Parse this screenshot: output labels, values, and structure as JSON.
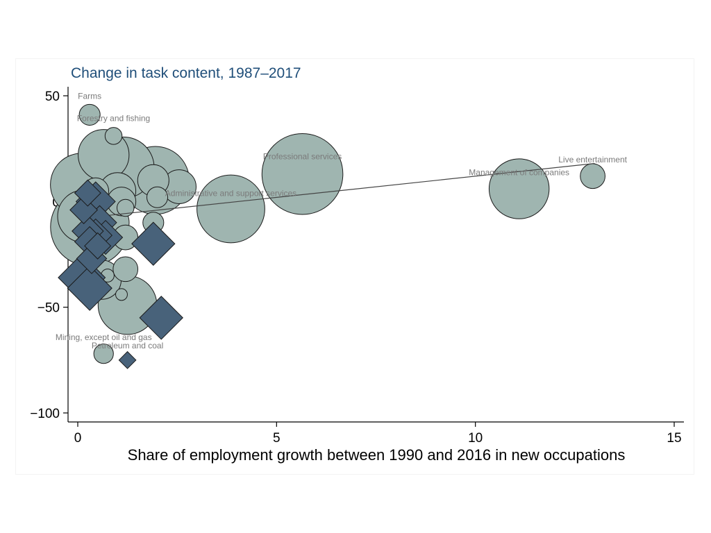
{
  "chart_data": {
    "type": "scatter",
    "title": "Change in task content, 1987–2017",
    "xlabel": "Share of employment growth between 1990 and 2016 in new occupations",
    "ylabel": "",
    "xlim": [
      -0.25,
      15.25
    ],
    "ylim": [
      -103,
      55
    ],
    "xticks": [
      "0",
      "5",
      "10",
      "15"
    ],
    "yticks": [
      "50",
      "0",
      "−50",
      "−100"
    ],
    "grid": false,
    "legend": "none",
    "colors": {
      "circle": "#9fb5b0",
      "diamond": "#48627a",
      "line": "#444444",
      "title": "#1f4e79"
    },
    "fit_line": {
      "x": [
        0.3,
        13.0
      ],
      "y": [
        -7.5,
        18
      ]
    },
    "series": [
      {
        "marker": "circle",
        "points": [
          {
            "x": 0.3,
            "y": 41,
            "size": 1.6
          },
          {
            "x": 0.9,
            "y": 31,
            "size": 1.3
          },
          {
            "x": 0.65,
            "y": 22,
            "size": 3.9
          },
          {
            "x": 1.15,
            "y": 16,
            "size": 4.7
          },
          {
            "x": 0.1,
            "y": 8,
            "size": 4.8
          },
          {
            "x": 1.95,
            "y": 10,
            "size": 5.2
          },
          {
            "x": 1.9,
            "y": 10,
            "size": 2.4
          },
          {
            "x": 2.55,
            "y": 7,
            "size": 2.6
          },
          {
            "x": 0.45,
            "y": 5,
            "size": 2.0
          },
          {
            "x": 1.0,
            "y": 5,
            "size": 2.8
          },
          {
            "x": 1.1,
            "y": 0,
            "size": 2.2
          },
          {
            "x": 2.0,
            "y": 2,
            "size": 1.6
          },
          {
            "x": 1.2,
            "y": -3,
            "size": 1.3
          },
          {
            "x": 0.15,
            "y": -7,
            "size": 4.0
          },
          {
            "x": 0.3,
            "y": -12,
            "size": 6.0
          },
          {
            "x": 0.8,
            "y": -10,
            "size": 3.0
          },
          {
            "x": 1.9,
            "y": -10,
            "size": 1.6
          },
          {
            "x": 1.2,
            "y": -17,
            "size": 1.9
          },
          {
            "x": 1.2,
            "y": -32,
            "size": 1.9
          },
          {
            "x": 0.6,
            "y": -37,
            "size": 3.0
          },
          {
            "x": 0.75,
            "y": -35,
            "size": 1.0
          },
          {
            "x": 1.25,
            "y": -49,
            "size": 4.5
          },
          {
            "x": 1.1,
            "y": -44,
            "size": 0.9
          },
          {
            "x": 0.65,
            "y": -72,
            "size": 1.5
          },
          {
            "x": 3.85,
            "y": -3.5,
            "size": 5.2
          },
          {
            "x": 5.65,
            "y": 13,
            "size": 6.2
          },
          {
            "x": 11.1,
            "y": 6,
            "size": 4.6
          },
          {
            "x": 12.95,
            "y": 12,
            "size": 1.9
          }
        ]
      },
      {
        "marker": "diamond",
        "points": [
          {
            "x": 0.25,
            "y": 4,
            "size": 2.0
          },
          {
            "x": 0.45,
            "y": 0,
            "size": 3.0
          },
          {
            "x": 0.15,
            "y": -4,
            "size": 2.1
          },
          {
            "x": 0.55,
            "y": -10,
            "size": 2.6
          },
          {
            "x": 0.25,
            "y": -14,
            "size": 2.4
          },
          {
            "x": 0.45,
            "y": -16,
            "size": 2.5
          },
          {
            "x": 0.7,
            "y": -17,
            "size": 2.6
          },
          {
            "x": 0.3,
            "y": -19,
            "size": 2.3
          },
          {
            "x": 0.5,
            "y": -21,
            "size": 2.0
          },
          {
            "x": 1.9,
            "y": -20,
            "size": 3.3
          },
          {
            "x": 0.35,
            "y": -27,
            "size": 2.3
          },
          {
            "x": 0.1,
            "y": -36,
            "size": 3.6
          },
          {
            "x": 0.3,
            "y": -41,
            "size": 3.4
          },
          {
            "x": 2.1,
            "y": -55,
            "size": 3.3
          },
          {
            "x": 1.25,
            "y": -75,
            "size": 1.3
          }
        ]
      }
    ],
    "annotations": [
      {
        "text": "Farms",
        "x": 0.3,
        "y": 48.5
      },
      {
        "text": "Forestry and fishing",
        "x": 0.9,
        "y": 38
      },
      {
        "text": "Professional services",
        "x": 5.65,
        "y": 20
      },
      {
        "text": "Live entertainment",
        "x": 12.95,
        "y": 18.5
      },
      {
        "text": "Management of companies",
        "x": 11.1,
        "y": 12.5
      },
      {
        "text": "Administrative and support services",
        "x": 3.85,
        "y": 2.5
      },
      {
        "text": "Mining, except oil and gas",
        "x": 0.65,
        "y": -65.5
      },
      {
        "text": "Petroleum and coal",
        "x": 1.25,
        "y": -69.5
      }
    ]
  }
}
